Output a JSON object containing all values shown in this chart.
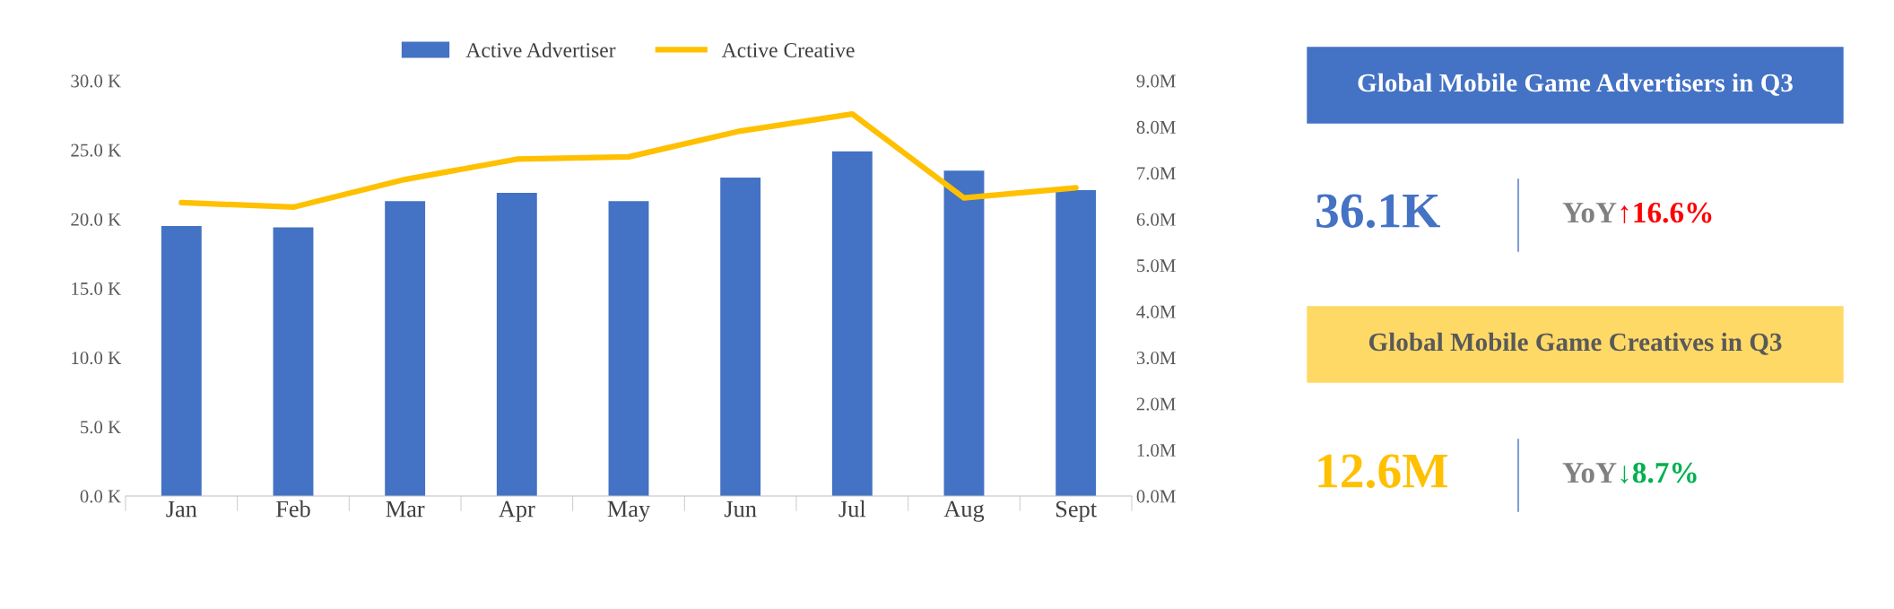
{
  "chart_data": [
    {
      "type": "bar",
      "categories": [
        "Jan",
        "Feb",
        "Mar",
        "Apr",
        "May",
        "Jun",
        "Jul",
        "Aug",
        "Sept"
      ],
      "series": [
        {
          "name": "Active Advertiser",
          "color": "#4472c4",
          "type": "bar",
          "values": [
            19.5,
            19.4,
            21.3,
            21.9,
            21.3,
            23.0,
            24.9,
            23.5,
            22.1
          ]
        },
        {
          "name": "Active Creative",
          "color": "#ffc000",
          "type": "line",
          "axis": "y2",
          "values": [
            6.36,
            6.26,
            6.86,
            7.3,
            7.35,
            7.91,
            8.28,
            6.46,
            6.68
          ]
        }
      ],
      "ylim": [
        0,
        30
      ],
      "yticks": [
        {
          "value": 0,
          "label": "0.0 K"
        },
        {
          "value": 5,
          "label": "5.0 K"
        },
        {
          "value": 10,
          "label": "10.0 K"
        },
        {
          "value": 15,
          "label": "15.0 K"
        },
        {
          "value": 20,
          "label": "20.0 K"
        },
        {
          "value": 25,
          "label": "25.0 K"
        },
        {
          "value": 30,
          "label": "30.0 K"
        }
      ],
      "y2lim": [
        0,
        9
      ],
      "y2ticks": [
        {
          "value": 0,
          "label": "0.0M"
        },
        {
          "value": 1,
          "label": "1.0M"
        },
        {
          "value": 2,
          "label": "2.0M"
        },
        {
          "value": 3,
          "label": "3.0M"
        },
        {
          "value": 4,
          "label": "4.0M"
        },
        {
          "value": 5,
          "label": "5.0M"
        },
        {
          "value": 6,
          "label": "6.0M"
        },
        {
          "value": 7,
          "label": "7.0M"
        },
        {
          "value": 8,
          "label": "8.0M"
        },
        {
          "value": 9,
          "label": "9.0M"
        }
      ],
      "grid": false,
      "legend": "top",
      "marker": "none",
      "line_style": "solid"
    },
    {
      "type": "other",
      "annotations": [
        "Global Mobile Game Advertisers in Q3",
        "36.1K",
        "YoY",
        "↑16.6%",
        "Global Mobile Game Creatives in Q3",
        "12.6M",
        "YoY",
        "↓8.7%"
      ]
    }
  ]
}
